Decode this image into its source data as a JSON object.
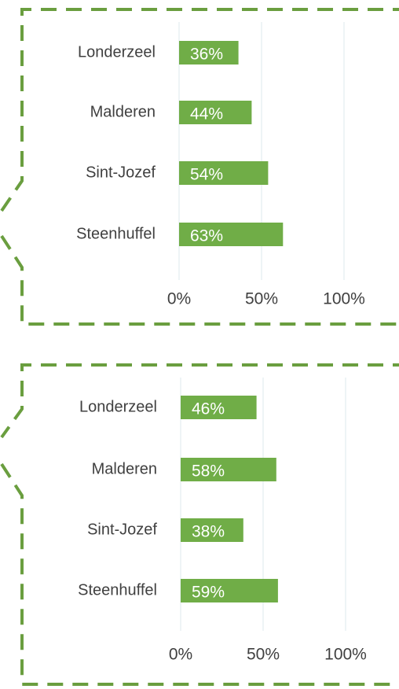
{
  "chart_data": [
    {
      "type": "bar",
      "orientation": "horizontal",
      "categories": [
        "Londerzeel",
        "Malderen",
        "Sint-Jozef",
        "Steenhuffel"
      ],
      "values": [
        36,
        44,
        54,
        63
      ],
      "value_labels": [
        "36%",
        "44%",
        "54%",
        "63%"
      ],
      "color": "#70ad47",
      "xlim": [
        0,
        100
      ],
      "xticks": [
        {
          "value": 0,
          "label": "0%"
        },
        {
          "value": 50,
          "label": "50%"
        },
        {
          "value": 100,
          "label": "100%"
        }
      ],
      "grid": true
    },
    {
      "type": "bar",
      "orientation": "horizontal",
      "categories": [
        "Londerzeel",
        "Malderen",
        "Sint-Jozef",
        "Steenhuffel"
      ],
      "values": [
        46,
        58,
        38,
        59
      ],
      "value_labels": [
        "46%",
        "58%",
        "38%",
        "59%"
      ],
      "color": "#70ad47",
      "xlim": [
        0,
        100
      ],
      "xticks": [
        {
          "value": 0,
          "label": "0%"
        },
        {
          "value": 50,
          "label": "50%"
        },
        {
          "value": 100,
          "label": "100%"
        }
      ],
      "grid": true
    }
  ]
}
